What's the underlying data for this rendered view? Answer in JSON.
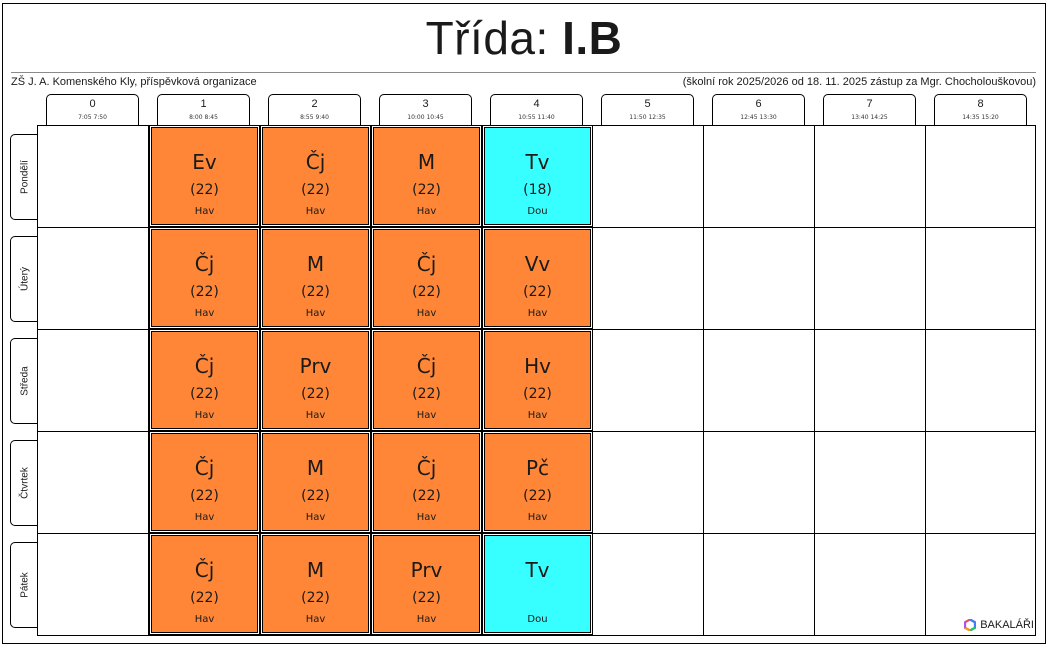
{
  "header": {
    "title_prefix": "Třída: ",
    "class_name": "I.B",
    "school": "ZŠ J. A. Komenského Kly, příspěvková organizace",
    "period_info": "(školní rok 2025/2026 od 18. 11. 2025 zástup za Mgr. Chocholouškovou)"
  },
  "colors": {
    "regular_lesson": "#ff8636",
    "pe_lesson": "#37ffff",
    "grid_line": "#000000"
  },
  "hours": [
    {
      "num": "0",
      "time": "7:05  7:50"
    },
    {
      "num": "1",
      "time": "8:00  8:45"
    },
    {
      "num": "2",
      "time": "8:55  9:40"
    },
    {
      "num": "3",
      "time": "10:00 10:45"
    },
    {
      "num": "4",
      "time": "10:55 11:40"
    },
    {
      "num": "5",
      "time": "11:50 12:35"
    },
    {
      "num": "6",
      "time": "12:45 13:30"
    },
    {
      "num": "7",
      "time": "13:40 14:25"
    },
    {
      "num": "8",
      "time": "14:35 15:20"
    }
  ],
  "days": [
    {
      "name": "Pondělí",
      "lessons": [
        {
          "hour": 1,
          "subject": "Ev",
          "room": "(22)",
          "teacher": "Hav",
          "color": "#ff8636"
        },
        {
          "hour": 2,
          "subject": "Čj",
          "room": "(22)",
          "teacher": "Hav",
          "color": "#ff8636"
        },
        {
          "hour": 3,
          "subject": "M",
          "room": "(22)",
          "teacher": "Hav",
          "color": "#ff8636"
        },
        {
          "hour": 4,
          "subject": "Tv",
          "room": "(18)",
          "teacher": "Dou",
          "color": "#37ffff"
        }
      ]
    },
    {
      "name": "Úterý",
      "lessons": [
        {
          "hour": 1,
          "subject": "Čj",
          "room": "(22)",
          "teacher": "Hav",
          "color": "#ff8636"
        },
        {
          "hour": 2,
          "subject": "M",
          "room": "(22)",
          "teacher": "Hav",
          "color": "#ff8636"
        },
        {
          "hour": 3,
          "subject": "Čj",
          "room": "(22)",
          "teacher": "Hav",
          "color": "#ff8636"
        },
        {
          "hour": 4,
          "subject": "Vv",
          "room": "(22)",
          "teacher": "Hav",
          "color": "#ff8636"
        }
      ]
    },
    {
      "name": "Středa",
      "lessons": [
        {
          "hour": 1,
          "subject": "Čj",
          "room": "(22)",
          "teacher": "Hav",
          "color": "#ff8636"
        },
        {
          "hour": 2,
          "subject": "Prv",
          "room": "(22)",
          "teacher": "Hav",
          "color": "#ff8636"
        },
        {
          "hour": 3,
          "subject": "Čj",
          "room": "(22)",
          "teacher": "Hav",
          "color": "#ff8636"
        },
        {
          "hour": 4,
          "subject": "Hv",
          "room": "(22)",
          "teacher": "Hav",
          "color": "#ff8636"
        }
      ]
    },
    {
      "name": "Čtvrtek",
      "lessons": [
        {
          "hour": 1,
          "subject": "Čj",
          "room": "(22)",
          "teacher": "Hav",
          "color": "#ff8636"
        },
        {
          "hour": 2,
          "subject": "M",
          "room": "(22)",
          "teacher": "Hav",
          "color": "#ff8636"
        },
        {
          "hour": 3,
          "subject": "Čj",
          "room": "(22)",
          "teacher": "Hav",
          "color": "#ff8636"
        },
        {
          "hour": 4,
          "subject": "Pč",
          "room": "(22)",
          "teacher": "Hav",
          "color": "#ff8636"
        }
      ]
    },
    {
      "name": "Pátek",
      "lessons": [
        {
          "hour": 1,
          "subject": "Čj",
          "room": "(22)",
          "teacher": "Hav",
          "color": "#ff8636"
        },
        {
          "hour": 2,
          "subject": "M",
          "room": "(22)",
          "teacher": "Hav",
          "color": "#ff8636"
        },
        {
          "hour": 3,
          "subject": "Prv",
          "room": "(22)",
          "teacher": "Hav",
          "color": "#ff8636"
        },
        {
          "hour": 4,
          "subject": "Tv",
          "room": "",
          "teacher": "Dou",
          "color": "#37ffff"
        }
      ]
    }
  ],
  "footer": {
    "logo_text": "BAKALÁŘI",
    "logo_icon": "bakalari-hexagon-icon"
  }
}
